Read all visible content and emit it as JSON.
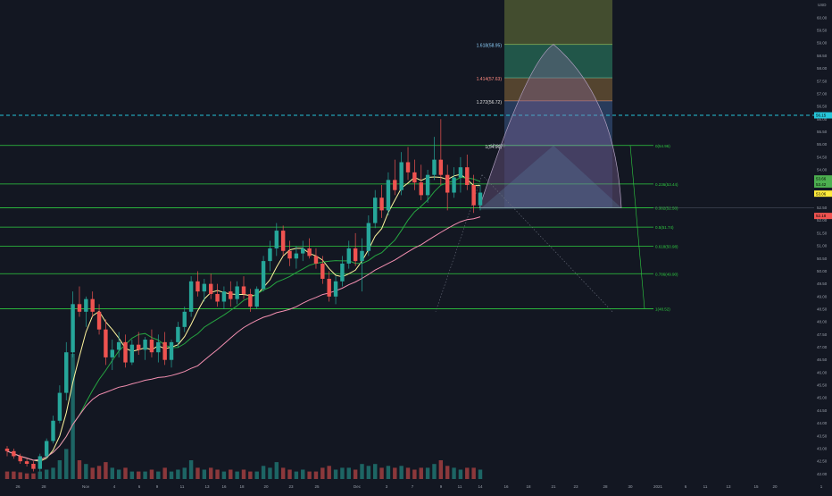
{
  "chart_data": {
    "type": "candlestick",
    "instrument_note": "",
    "price_axis": {
      "ylim": [
        41.8,
        60.7
      ],
      "tick_values": [
        42.0,
        42.5,
        43.0,
        43.5,
        44.0,
        44.5,
        45.0,
        45.5,
        46.0,
        46.5,
        47.0,
        47.5,
        48.0,
        48.5,
        49.0,
        49.5,
        50.0,
        50.5,
        51.0,
        51.5,
        52.0,
        52.5,
        53.0,
        53.5,
        54.0,
        54.5,
        55.0,
        55.5,
        56.0,
        56.5,
        57.0,
        57.5,
        58.0,
        58.5,
        59.0,
        59.5,
        60.0
      ],
      "tick_labels": [
        "42.00",
        "42.50",
        "43.00",
        "43.50",
        "44.00",
        "44.50",
        "45.00",
        "45.50",
        "46.00",
        "46.50",
        "47.00",
        "47.50",
        "48.00",
        "48.50",
        "49.00",
        "49.50",
        "50.00",
        "50.50",
        "51.00",
        "51.50",
        "52.00",
        "52.50",
        "53.00",
        "53.50",
        "54.00",
        "54.50",
        "55.00",
        "55.50",
        "56.00",
        "56.50",
        "57.00",
        "57.50",
        "58.00",
        "58.50",
        "59.00",
        "59.50",
        "60.00"
      ],
      "top_label": "USD",
      "price_badges": [
        {
          "value": "56.15",
          "color": "#26c6da"
        },
        {
          "value": "53.66",
          "color": "#4caf50"
        },
        {
          "value": "53.42",
          "color": "#4caf50"
        },
        {
          "value": "53.06",
          "color": "#ffeb3b"
        },
        {
          "value": "52.18",
          "color": "#ef5350"
        }
      ]
    },
    "time_axis": {
      "labels": [
        "26",
        "28",
        "Nov",
        "4",
        "6",
        "9",
        "11",
        "13",
        "16",
        "18",
        "20",
        "23",
        "25",
        "Dec",
        "3",
        "7",
        "9",
        "11",
        "14",
        "16",
        "18",
        "21",
        "23",
        "28",
        "30",
        "2021",
        "6",
        "11",
        "13",
        "15",
        "20",
        "1"
      ]
    },
    "fibonacci_retracement": [
      {
        "label": "0(54.96)",
        "value": 54.96
      },
      {
        "label": "0.236(53.44)",
        "value": 53.44
      },
      {
        "label": "0.382(52.50)",
        "value": 52.5
      },
      {
        "label": "0.5(51.74)",
        "value": 51.74
      },
      {
        "label": "0.618(50.98)",
        "value": 50.98
      },
      {
        "label": "0.786(49.90)",
        "value": 49.9
      },
      {
        "label": "1(48.52)",
        "value": 48.52
      }
    ],
    "fibonacci_extension": [
      {
        "label": "1.618(58.95)",
        "value": 58.95
      },
      {
        "label": "1.414(57.63)",
        "value": 57.63
      },
      {
        "label": "1.272(56.72)",
        "value": 56.72
      },
      {
        "label": "1(54.96)",
        "value": 54.96
      }
    ],
    "horizontal_line": {
      "value": 56.15,
      "style": "dashed",
      "color": "#26c6da"
    },
    "moving_averages": [
      {
        "color": "#fff59d"
      },
      {
        "color": "#26a641"
      },
      {
        "color": "#f48fb1"
      }
    ],
    "candles_ohlc": [
      [
        43.0,
        43.1,
        42.7,
        42.9
      ],
      [
        42.9,
        43.0,
        42.6,
        42.7
      ],
      [
        42.7,
        42.8,
        42.4,
        42.5
      ],
      [
        42.5,
        42.6,
        42.3,
        42.4
      ],
      [
        42.4,
        42.5,
        42.1,
        42.2
      ],
      [
        42.2,
        42.8,
        42.1,
        42.7
      ],
      [
        42.7,
        43.4,
        42.6,
        43.3
      ],
      [
        43.3,
        44.3,
        43.2,
        44.1
      ],
      [
        44.1,
        45.5,
        44.0,
        45.2
      ],
      [
        45.2,
        47.2,
        44.9,
        46.8
      ],
      [
        46.8,
        49.2,
        46.6,
        48.7
      ],
      [
        48.7,
        49.4,
        48.2,
        48.4
      ],
      [
        48.4,
        49.0,
        47.8,
        48.9
      ],
      [
        48.9,
        49.2,
        48.2,
        48.4
      ],
      [
        48.4,
        48.7,
        47.5,
        47.7
      ],
      [
        47.7,
        48.1,
        46.3,
        46.6
      ],
      [
        46.6,
        47.3,
        46.1,
        46.9
      ],
      [
        46.9,
        47.6,
        46.6,
        47.2
      ],
      [
        47.2,
        47.5,
        46.2,
        46.4
      ],
      [
        46.4,
        47.3,
        46.3,
        47.1
      ],
      [
        47.1,
        47.6,
        46.7,
        46.9
      ],
      [
        46.9,
        47.4,
        46.5,
        47.3
      ],
      [
        47.3,
        47.7,
        46.6,
        46.8
      ],
      [
        46.8,
        47.5,
        46.4,
        47.2
      ],
      [
        47.2,
        47.6,
        46.3,
        46.5
      ],
      [
        46.5,
        47.3,
        46.2,
        47.2
      ],
      [
        47.2,
        48.0,
        47.0,
        47.8
      ],
      [
        47.8,
        48.6,
        47.6,
        48.4
      ],
      [
        48.4,
        49.8,
        48.2,
        49.6
      ],
      [
        49.6,
        50.0,
        49.0,
        49.2
      ],
      [
        49.2,
        49.7,
        48.8,
        49.5
      ],
      [
        49.5,
        49.9,
        48.9,
        49.1
      ],
      [
        49.1,
        49.5,
        48.6,
        48.8
      ],
      [
        48.8,
        49.4,
        48.5,
        49.2
      ],
      [
        49.2,
        49.6,
        48.6,
        48.9
      ],
      [
        48.9,
        49.6,
        48.7,
        49.4
      ],
      [
        49.4,
        49.8,
        48.9,
        49.1
      ],
      [
        49.1,
        49.3,
        48.4,
        48.6
      ],
      [
        48.6,
        49.4,
        48.5,
        49.3
      ],
      [
        49.3,
        50.6,
        49.2,
        50.4
      ],
      [
        50.4,
        51.2,
        50.0,
        50.9
      ],
      [
        50.9,
        51.9,
        50.6,
        51.6
      ],
      [
        51.6,
        51.8,
        50.6,
        50.8
      ],
      [
        50.8,
        51.2,
        50.2,
        50.5
      ],
      [
        50.5,
        51.0,
        50.1,
        50.7
      ],
      [
        50.7,
        51.2,
        50.4,
        50.9
      ],
      [
        50.9,
        51.3,
        50.5,
        50.6
      ],
      [
        50.6,
        50.9,
        50.1,
        50.3
      ],
      [
        50.3,
        50.6,
        49.5,
        49.7
      ],
      [
        49.7,
        50.0,
        48.8,
        49.0
      ],
      [
        49.0,
        49.8,
        48.7,
        49.6
      ],
      [
        49.6,
        50.6,
        49.4,
        50.3
      ],
      [
        50.3,
        51.2,
        50.1,
        50.9
      ],
      [
        50.9,
        51.5,
        50.2,
        50.4
      ],
      [
        50.4,
        51.3,
        49.2,
        50.8
      ],
      [
        50.8,
        52.2,
        50.6,
        51.9
      ],
      [
        51.9,
        53.2,
        51.7,
        52.9
      ],
      [
        52.9,
        53.4,
        52.1,
        52.4
      ],
      [
        52.4,
        53.9,
        52.2,
        53.6
      ],
      [
        53.6,
        54.4,
        53.0,
        53.2
      ],
      [
        53.2,
        54.7,
        53.0,
        54.3
      ],
      [
        54.3,
        54.9,
        53.6,
        53.9
      ],
      [
        53.9,
        54.4,
        53.2,
        53.5
      ],
      [
        53.5,
        54.2,
        52.8,
        53.0
      ],
      [
        53.0,
        54.0,
        52.7,
        53.8
      ],
      [
        53.8,
        55.3,
        53.6,
        54.4
      ],
      [
        54.4,
        56.0,
        53.4,
        53.8
      ],
      [
        53.8,
        54.2,
        52.4,
        53.1
      ],
      [
        53.1,
        54.1,
        52.9,
        53.7
      ],
      [
        53.7,
        54.5,
        53.1,
        54.1
      ],
      [
        54.1,
        54.6,
        53.2,
        53.4
      ],
      [
        53.4,
        53.8,
        52.3,
        52.6
      ],
      [
        52.6,
        53.4,
        52.4,
        53.1
      ]
    ],
    "volume_relative": [
      0.2,
      0.2,
      0.18,
      0.15,
      0.15,
      0.2,
      0.25,
      0.3,
      0.5,
      0.8,
      1.0,
      0.5,
      0.4,
      0.3,
      0.35,
      0.45,
      0.3,
      0.25,
      0.3,
      0.2,
      0.2,
      0.2,
      0.25,
      0.2,
      0.3,
      0.2,
      0.25,
      0.3,
      0.5,
      0.3,
      0.25,
      0.3,
      0.25,
      0.2,
      0.25,
      0.2,
      0.25,
      0.2,
      0.2,
      0.35,
      0.3,
      0.45,
      0.3,
      0.25,
      0.2,
      0.25,
      0.2,
      0.2,
      0.3,
      0.35,
      0.25,
      0.3,
      0.3,
      0.25,
      0.4,
      0.35,
      0.4,
      0.3,
      0.35,
      0.3,
      0.35,
      0.3,
      0.25,
      0.3,
      0.3,
      0.4,
      0.5,
      0.35,
      0.3,
      0.25,
      0.3,
      0.3,
      0.25
    ]
  }
}
